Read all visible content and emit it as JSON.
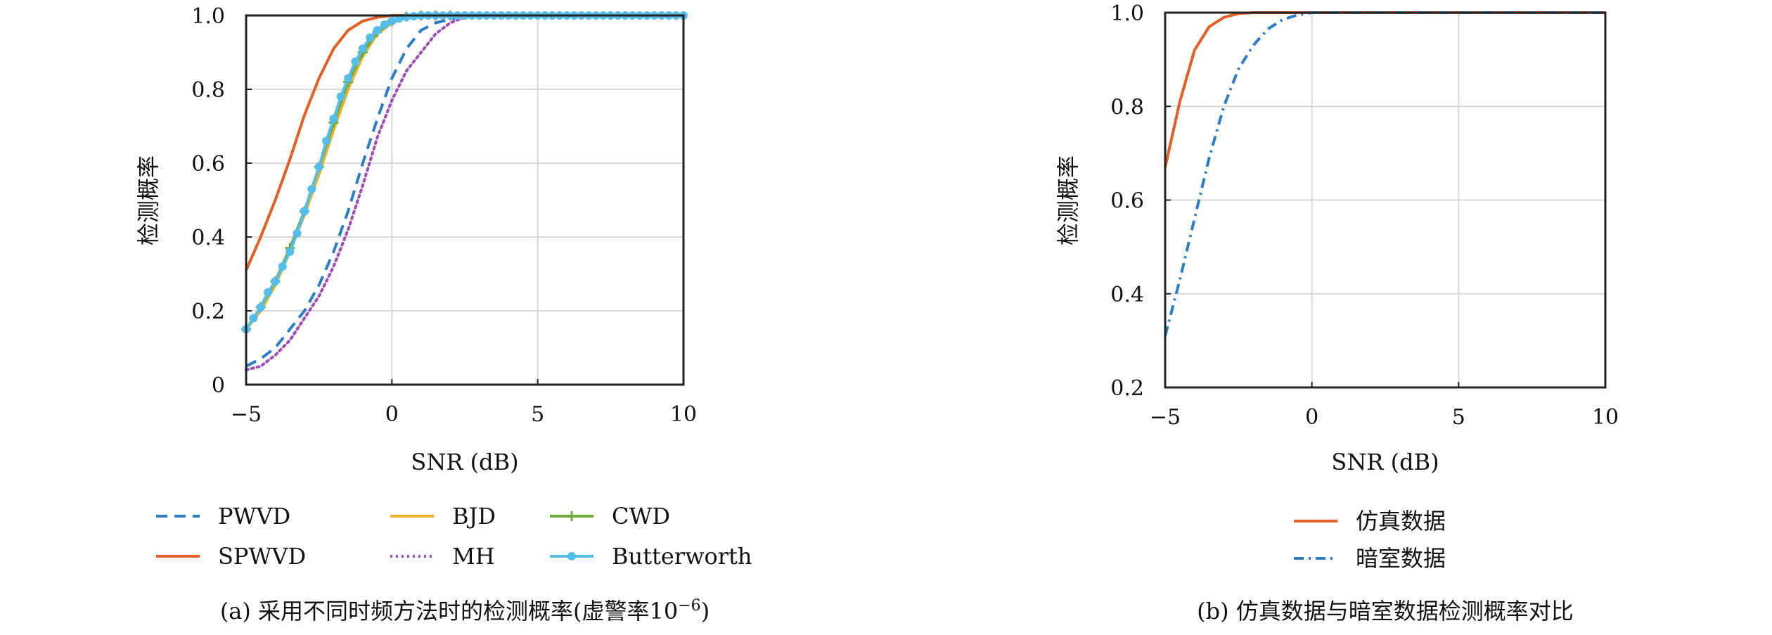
{
  "chart_data": [
    {
      "type": "line",
      "xlabel": "SNR (dB)",
      "ylabel": "检测概率",
      "xlim": [
        -5,
        10
      ],
      "ylim": [
        0,
        1
      ],
      "xticks": [
        "−5",
        "0",
        "5",
        "10"
      ],
      "yticks": [
        "0",
        "0.2",
        "0.4",
        "0.6",
        "0.8",
        "1.0"
      ],
      "grid": true,
      "legend_position": "below",
      "caption": {
        "prefix": "(a) 采用不同时频方法时的检测概率(虚警率10",
        "sup": "−6",
        "suffix": ")"
      },
      "series": [
        {
          "name": "PWVD",
          "color": "#2d7dc4",
          "style": "dashed",
          "x": [
            -5,
            -4.5,
            -4,
            -3.5,
            -3,
            -2.5,
            -2,
            -1.5,
            -1,
            -0.5,
            0,
            0.5,
            1,
            1.5,
            2,
            2.5,
            3,
            4,
            5,
            6,
            7,
            8,
            9,
            10
          ],
          "y": [
            0.05,
            0.07,
            0.1,
            0.15,
            0.2,
            0.27,
            0.36,
            0.47,
            0.6,
            0.72,
            0.83,
            0.91,
            0.96,
            0.98,
            0.99,
            1.0,
            1.0,
            1.0,
            1.0,
            1.0,
            1.0,
            1.0,
            1.0,
            1.0
          ]
        },
        {
          "name": "SPWVD",
          "color": "#e35f25",
          "style": "solid",
          "x": [
            -5,
            -4.5,
            -4,
            -3.5,
            -3,
            -2.5,
            -2,
            -1.5,
            -1,
            -0.5,
            0,
            0.5,
            1,
            2,
            3,
            4,
            5,
            6,
            7,
            8,
            9,
            10
          ],
          "y": [
            0.31,
            0.4,
            0.5,
            0.61,
            0.73,
            0.83,
            0.91,
            0.96,
            0.985,
            0.995,
            1.0,
            1.0,
            1.0,
            1.0,
            1.0,
            1.0,
            1.0,
            1.0,
            1.0,
            1.0,
            1.0,
            1.0
          ]
        },
        {
          "name": "BJD",
          "color": "#eab12b",
          "style": "solid",
          "x": [
            -5,
            -4.5,
            -4,
            -3.5,
            -3,
            -2.5,
            -2,
            -1.5,
            -1,
            -0.5,
            0,
            0.5,
            1,
            1.5,
            2,
            3,
            4,
            5,
            6,
            7,
            8,
            9,
            10
          ],
          "y": [
            0.15,
            0.2,
            0.27,
            0.36,
            0.46,
            0.57,
            0.69,
            0.8,
            0.89,
            0.95,
            0.98,
            0.995,
            1.0,
            1.0,
            1.0,
            1.0,
            1.0,
            1.0,
            1.0,
            1.0,
            1.0,
            1.0,
            1.0
          ]
        },
        {
          "name": "MH",
          "color": "#9b4fb5",
          "style": "dotted",
          "x": [
            -5,
            -4.5,
            -4,
            -3.5,
            -3,
            -2.5,
            -2,
            -1.5,
            -1,
            -0.5,
            0,
            0.5,
            1,
            1.5,
            2,
            2.5,
            3,
            4,
            5,
            6,
            7,
            8,
            9,
            10
          ],
          "y": [
            0.04,
            0.05,
            0.08,
            0.12,
            0.18,
            0.24,
            0.32,
            0.42,
            0.54,
            0.67,
            0.77,
            0.85,
            0.9,
            0.95,
            0.98,
            0.995,
            1.0,
            1.0,
            1.0,
            1.0,
            1.0,
            1.0,
            1.0,
            1.0
          ]
        },
        {
          "name": "CWD",
          "color": "#6faa3c",
          "style": "solid-plus",
          "x": [
            -5,
            -4.5,
            -4,
            -3.5,
            -3,
            -2.5,
            -2,
            -1.5,
            -1,
            -0.5,
            0,
            0.5,
            1,
            1.5,
            2,
            3,
            4,
            5,
            6,
            7,
            8,
            9,
            10
          ],
          "y": [
            0.15,
            0.21,
            0.28,
            0.37,
            0.47,
            0.59,
            0.71,
            0.82,
            0.9,
            0.955,
            0.985,
            0.997,
            1.0,
            1.0,
            1.0,
            1.0,
            1.0,
            1.0,
            1.0,
            1.0,
            1.0,
            1.0,
            1.0
          ]
        },
        {
          "name": "Butterworth",
          "color": "#55bde9",
          "style": "solid-dot",
          "x": [
            -5,
            -4.75,
            -4.5,
            -4.25,
            -4,
            -3.75,
            -3.5,
            -3.25,
            -3,
            -2.75,
            -2.5,
            -2.25,
            -2,
            -1.75,
            -1.5,
            -1.25,
            -1,
            -0.75,
            -0.5,
            -0.25,
            0,
            0.25,
            0.5,
            0.75,
            1,
            1.25,
            1.5,
            1.75,
            2,
            2.25,
            2.5,
            2.75,
            3,
            3.25,
            3.5,
            3.75,
            4,
            4.25,
            4.5,
            4.75,
            5,
            5.25,
            5.5,
            5.75,
            6,
            6.25,
            6.5,
            6.75,
            7,
            7.25,
            7.5,
            7.75,
            8,
            8.25,
            8.5,
            8.75,
            9,
            9.25,
            9.5,
            9.75,
            10
          ],
          "y": [
            0.15,
            0.18,
            0.21,
            0.25,
            0.28,
            0.32,
            0.36,
            0.41,
            0.47,
            0.53,
            0.59,
            0.66,
            0.72,
            0.78,
            0.83,
            0.875,
            0.91,
            0.94,
            0.96,
            0.975,
            0.985,
            0.992,
            0.996,
            0.998,
            1.0,
            1.0,
            1.0,
            1.0,
            1.0,
            1.0,
            1.0,
            1.0,
            1.0,
            1.0,
            1.0,
            1.0,
            1.0,
            1.0,
            1.0,
            1.0,
            1.0,
            1.0,
            1.0,
            1.0,
            1.0,
            1.0,
            1.0,
            1.0,
            1.0,
            1.0,
            1.0,
            1.0,
            1.0,
            1.0,
            1.0,
            1.0,
            1.0,
            1.0,
            1.0,
            1.0,
            1.0
          ]
        }
      ]
    },
    {
      "type": "line",
      "xlabel": "SNR (dB)",
      "ylabel": "检测概率",
      "xlim": [
        -5,
        10
      ],
      "ylim": [
        0.2,
        1
      ],
      "xticks": [
        "−5",
        "0",
        "5",
        "10"
      ],
      "yticks": [
        "0.2",
        "0.4",
        "0.6",
        "0.8",
        "1.0"
      ],
      "grid": true,
      "legend_position": "below",
      "caption": {
        "prefix": "(b) 仿真数据与暗室数据检测概率对比",
        "sup": "",
        "suffix": ""
      },
      "series": [
        {
          "name": "仿真数据",
          "color": "#e35f25",
          "style": "solid",
          "x": [
            -5,
            -4.5,
            -4,
            -3.5,
            -3,
            -2.5,
            -2,
            -1.5,
            -1,
            -0.5,
            0,
            1,
            2,
            3,
            4,
            5,
            6,
            7,
            8,
            9,
            10
          ],
          "y": [
            0.67,
            0.81,
            0.92,
            0.97,
            0.99,
            0.998,
            1.0,
            1.0,
            1.0,
            1.0,
            1.0,
            1.0,
            1.0,
            1.0,
            1.0,
            1.0,
            1.0,
            1.0,
            1.0,
            1.0,
            1.0
          ]
        },
        {
          "name": "暗室数据",
          "color": "#2d7dc4",
          "style": "dashdot",
          "x": [
            -5,
            -4.5,
            -4,
            -3.5,
            -3,
            -2.5,
            -2,
            -1.5,
            -1,
            -0.5,
            0,
            0.5,
            1,
            2,
            3,
            4,
            5,
            6,
            7,
            8,
            9,
            10
          ],
          "y": [
            0.31,
            0.43,
            0.56,
            0.69,
            0.8,
            0.88,
            0.93,
            0.965,
            0.985,
            0.995,
            1.0,
            1.0,
            1.0,
            1.0,
            1.0,
            1.0,
            1.0,
            1.0,
            1.0,
            1.0,
            1.0,
            1.0
          ]
        }
      ]
    }
  ]
}
